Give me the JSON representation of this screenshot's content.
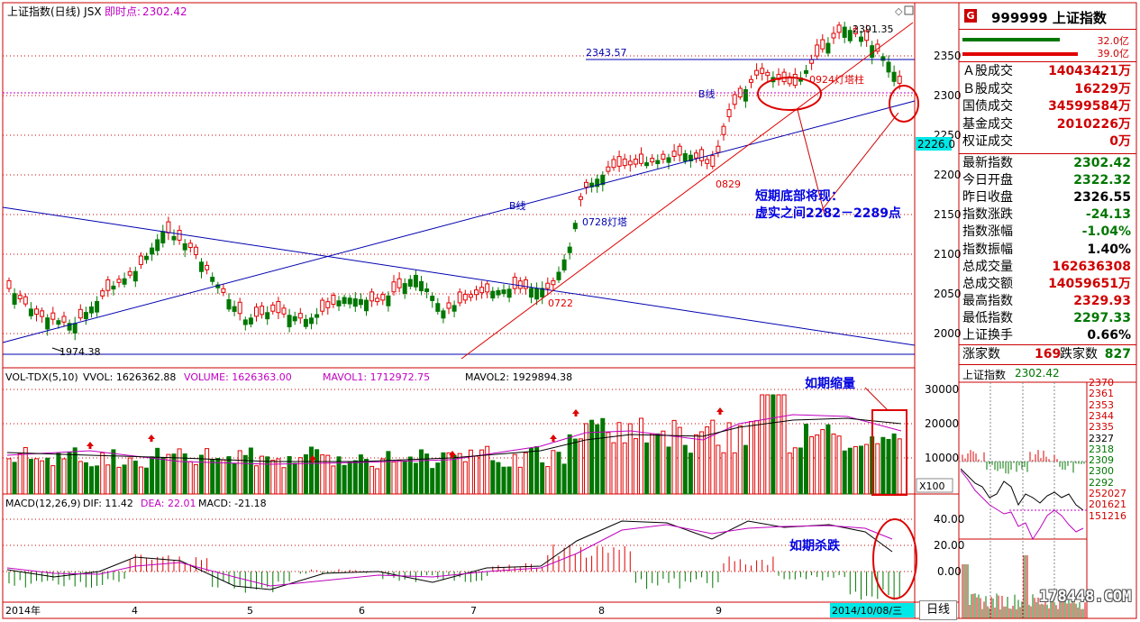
{
  "header": {
    "title": "上证指数(日线) JSX",
    "realtime_label": "即时点:",
    "realtime_value": "2302.42"
  },
  "price_axis": [
    "2350",
    "2300",
    "2250",
    "2200",
    "2150",
    "2100",
    "2050",
    "2000"
  ],
  "axis_highlight": "2226.0",
  "vol_axis": [
    "30000",
    "20000",
    "10000"
  ],
  "vol_unit": "X100",
  "macd_axis": [
    "40.00",
    "20.00",
    "0.00"
  ],
  "date_axis": [
    "2014年",
    "4",
    "5",
    "6",
    "7",
    "8",
    "9",
    "2014/10/08/三"
  ],
  "annotations": {
    "low": "1974.38",
    "high": "2391.35",
    "level": "2343.57",
    "lamp_pillar": "0924灯塔柱",
    "b_line_top": "B线",
    "b_line_mid": "B线",
    "d0829": "0829",
    "d0728": "0728灯塔",
    "d0722": "0722",
    "callout_line1": "短期底部将现：",
    "callout_line2": "虚实之间2282－2289点",
    "vol_note": "如期缩量",
    "macd_note": "如期杀跌"
  },
  "vol_header": {
    "name": "VOL-TDX(5,10)",
    "vvol": "VVOL: 1626362.88",
    "volume": "VOLUME: 1626363.00",
    "mavol1": "MAVOL1: 1712972.75",
    "mavol2": "MAVOL2: 1929894.38"
  },
  "macd_header": {
    "name": "MACD(12,26,9)",
    "dif": "DIF: 11.42",
    "dea": "DEA: 22.01",
    "macd": "MACD: -21.18"
  },
  "side": {
    "badge": "G",
    "code": "999999 上证指数",
    "bar1": "32.0亿",
    "bar2": "39.0亿",
    "rows1": [
      {
        "label": "Ａ股成交",
        "value": "14043421万"
      },
      {
        "label": "Ｂ股成交",
        "value": "16229万"
      },
      {
        "label": "国债成交",
        "value": "34599584万"
      },
      {
        "label": "基金成交",
        "value": "2010226万"
      },
      {
        "label": "权证成交",
        "value": "0万"
      }
    ],
    "rows2": [
      {
        "label": "最新指数",
        "value": "2302.42",
        "color": "green"
      },
      {
        "label": "今日开盘",
        "value": "2322.32",
        "color": "green"
      },
      {
        "label": "昨日收盘",
        "value": "2326.55",
        "color": "black"
      },
      {
        "label": "指数涨跌",
        "value": "-24.13",
        "color": "green"
      },
      {
        "label": "指数涨幅",
        "value": "-1.04%",
        "color": "green"
      },
      {
        "label": "指数振幅",
        "value": "1.40%",
        "color": "black"
      },
      {
        "label": "总成交量",
        "value": "162636308",
        "color": "red"
      },
      {
        "label": "总成交额",
        "value": "14059651万",
        "color": "red"
      },
      {
        "label": "最高指数",
        "value": "2329.93",
        "color": "red"
      },
      {
        "label": "最低指数",
        "value": "2297.33",
        "color": "green"
      },
      {
        "label": "上证换手",
        "value": "0.66%",
        "color": "black"
      }
    ],
    "up_label": "涨家数",
    "up_value": "169",
    "down_label": "跌家数",
    "down_value": "827",
    "mini_title": "上证指数",
    "mini_value": "2302.42",
    "mini_axis": [
      "2370",
      "2361",
      "2353",
      "2344",
      "2335",
      "2327",
      "2318",
      "2309",
      "2300",
      "2292",
      "252027",
      "201621",
      "151216"
    ]
  },
  "watermark": "178448.COM",
  "period_button": "日线",
  "colors": {
    "up": "#e00000",
    "down": "#007700",
    "line_blue": "#0000b0",
    "ma_pink": "#c000c0",
    "accent_cyan": "#00e8e8"
  }
}
